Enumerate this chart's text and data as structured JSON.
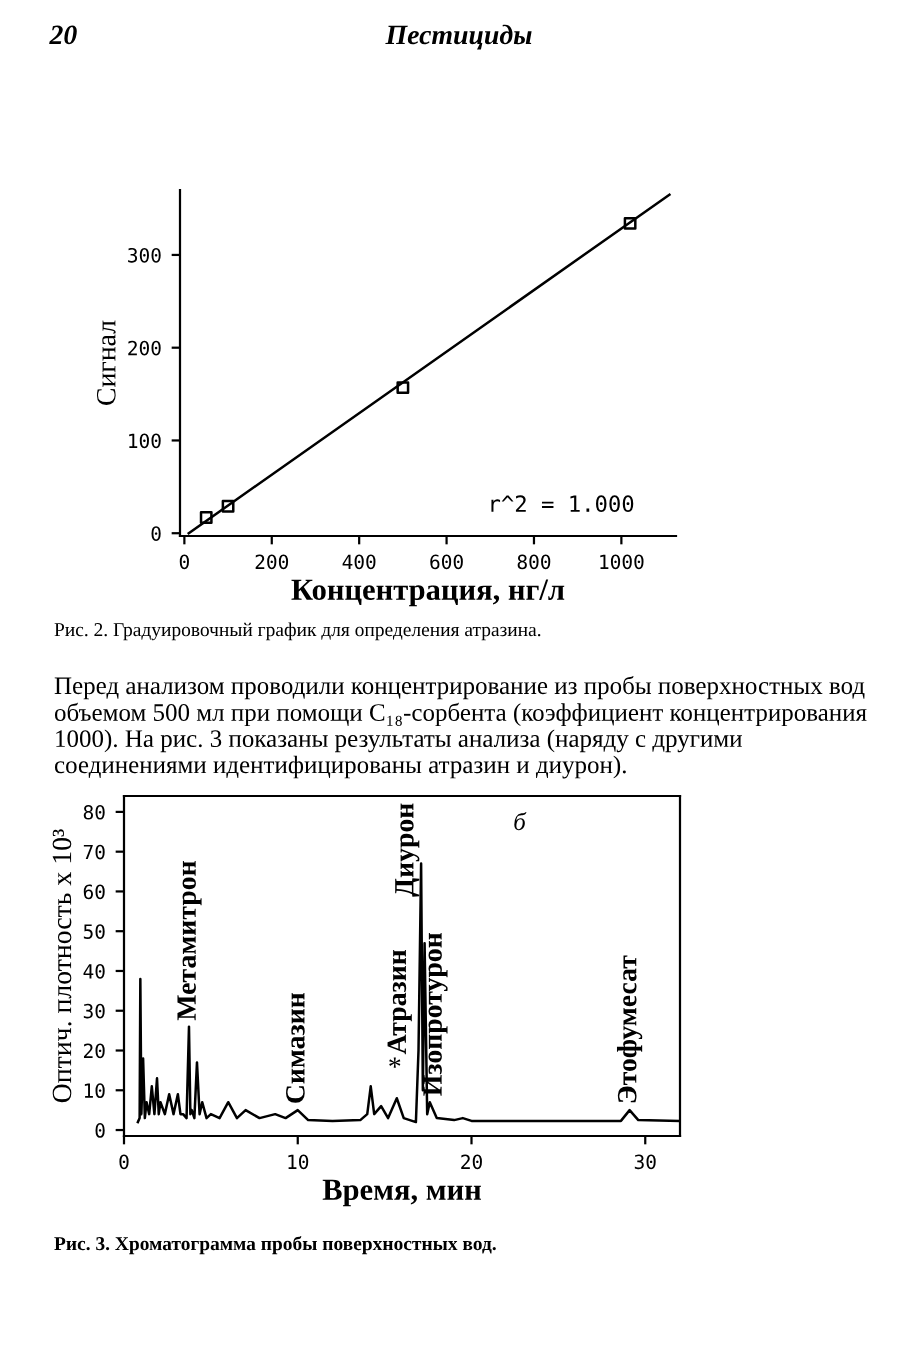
{
  "chart_data": [
    {
      "type": "scatter",
      "xlabel": "Концентрация, нг/л",
      "ylabel": "Сигнал",
      "annotations": [
        "20",
        "Пестициды",
        "r^2 = 1.000",
        "Рис. 2. Градуировочный график для определения атразина.",
        "Перед анализом проводили концентрирование из пробы поверхностных вод объемом 500 мл при помощи C₁₈-сорбента (коэффициент концентрирования 1000). На рис. 3 показаны результаты анализа (наряду с другими соединениями идентифицированы атразин и диурон)."
      ],
      "series": [
        {
          "type": "scatter",
          "x": [
            50,
            100,
            500,
            1020
          ],
          "values": [
            17,
            29,
            157,
            334
          ],
          "color": "#000000",
          "marker": "square"
        },
        {
          "type": "line",
          "x": [
            10,
            1110
          ],
          "values": [
            0,
            365
          ],
          "color": "#000000"
        }
      ],
      "xlim": [
        -10,
        1125
      ],
      "ylim": [
        -3,
        370
      ],
      "xticks": [
        0,
        200,
        400,
        600,
        800,
        1000
      ],
      "yticks": [
        0,
        100,
        200,
        300
      ],
      "grid": false
    },
    {
      "type": "line",
      "xlabel": "Время, мин",
      "ylabel": "Оптич. плотность x 10³",
      "annotations": [
        "б",
        "Рис. 3. Хроматограмма пробы поверхностных вод.",
        {
          "text": "Метамитрон",
          "x": 3.74,
          "y": 26
        },
        {
          "text": "Симазин",
          "x": 10.0,
          "y": 5
        },
        "*",
        "Атразин",
        {
          "text": "Диурон",
          "x": 17.1,
          "y": 67
        },
        {
          "text": "Изопротурон",
          "x": 17.9,
          "y": 7
        },
        {
          "text": "Этофумесат",
          "x": 29.1,
          "y": 5
        }
      ],
      "series": [
        {
          "color": "#000000",
          "x": [
            0.8,
            0.9,
            0.94,
            1.0,
            1.1,
            1.2,
            1.3,
            1.45,
            1.6,
            1.75,
            1.9,
            2.0,
            2.1,
            2.35,
            2.6,
            2.85,
            3.1,
            3.25,
            3.4,
            3.6,
            3.74,
            3.82,
            3.9,
            4.05,
            4.2,
            4.35,
            4.5,
            4.75,
            5.0,
            5.5,
            6.0,
            6.5,
            7.0,
            7.8,
            8.7,
            9.3,
            10.0,
            10.6,
            12.0,
            13.6,
            14.0,
            14.2,
            14.4,
            14.8,
            15.2,
            15.7,
            16.1,
            16.8,
            16.95,
            17.1,
            17.2,
            17.3,
            17.45,
            17.6,
            18.0,
            19.0,
            19.5,
            20.0,
            24.0,
            28.6,
            29.1,
            29.6,
            32.0
          ],
          "values": [
            2,
            3,
            38,
            4,
            18,
            3,
            7,
            4,
            11,
            4,
            13,
            4,
            7,
            4,
            9,
            4,
            9,
            4,
            4,
            3,
            26,
            4,
            5,
            3,
            17,
            4,
            7,
            3,
            4,
            3,
            7,
            3,
            5,
            3,
            4,
            3,
            5,
            2.5,
            2.3,
            2.5,
            4,
            11,
            4,
            6,
            3,
            8,
            3,
            2,
            20,
            67,
            10,
            47,
            4,
            7,
            3,
            2.5,
            3,
            2.3,
            2.3,
            2.3,
            5,
            2.5,
            2.3
          ]
        }
      ],
      "xlim": [
        0,
        32
      ],
      "ylim": [
        -1.5,
        84
      ],
      "xticks": [
        0,
        10,
        20,
        30
      ],
      "yticks": [
        0,
        10,
        20,
        30,
        40,
        50,
        60,
        70,
        80
      ],
      "grid": false,
      "marker": "none"
    }
  ]
}
